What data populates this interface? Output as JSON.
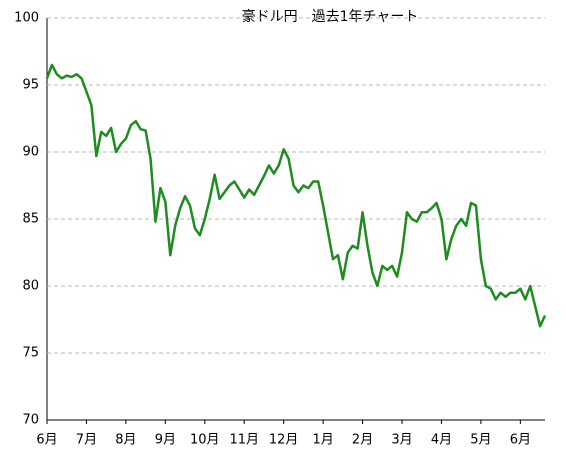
{
  "chart_data": {
    "type": "line",
    "title": "豪ドル円　過去1年チャート",
    "categories": [
      "6月",
      null,
      null,
      null,
      null,
      null,
      null,
      null,
      "7月",
      null,
      null,
      null,
      null,
      null,
      null,
      null,
      "8月",
      null,
      null,
      null,
      null,
      null,
      null,
      null,
      "9月",
      null,
      null,
      null,
      null,
      null,
      null,
      null,
      "10月",
      null,
      null,
      null,
      null,
      null,
      null,
      null,
      "11月",
      null,
      null,
      null,
      null,
      null,
      null,
      null,
      "12月",
      null,
      null,
      null,
      null,
      null,
      null,
      null,
      "1月",
      null,
      null,
      null,
      null,
      null,
      null,
      null,
      "2月",
      null,
      null,
      null,
      null,
      null,
      null,
      null,
      "3月",
      null,
      null,
      null,
      null,
      null,
      null,
      null,
      "4月",
      null,
      null,
      null,
      null,
      null,
      null,
      null,
      "5月",
      null,
      null,
      null,
      null,
      null,
      null,
      null,
      "6月",
      null,
      null,
      null,
      null,
      null
    ],
    "series": [
      {
        "name": "豪ドル円",
        "color": "#1e8c1e",
        "values": [
          95.5,
          96.5,
          95.8,
          95.5,
          95.7,
          95.6,
          95.8,
          95.5,
          94.5,
          93.5,
          89.7,
          91.5,
          91.2,
          91.8,
          90.0,
          90.6,
          91.0,
          92.0,
          92.3,
          91.7,
          91.6,
          89.5,
          84.8,
          87.3,
          86.3,
          82.3,
          84.5,
          85.8,
          86.7,
          86.0,
          84.3,
          83.8,
          85.0,
          86.5,
          88.3,
          86.5,
          87.0,
          87.5,
          87.8,
          87.2,
          86.6,
          87.2,
          86.8,
          87.5,
          88.2,
          89.0,
          88.4,
          89.0,
          90.2,
          89.5,
          87.5,
          87.0,
          87.5,
          87.3,
          87.8,
          87.8,
          86.0,
          84.0,
          82.0,
          82.3,
          80.5,
          82.5,
          83.0,
          82.8,
          85.5,
          83.0,
          81.0,
          80.0,
          81.5,
          81.2,
          81.5,
          80.7,
          82.5,
          85.5,
          85.0,
          84.8,
          85.5,
          85.5,
          85.8,
          86.2,
          85.0,
          82.0,
          83.5,
          84.5,
          85.0,
          84.5,
          86.2,
          86.0,
          82.0,
          80.0,
          79.8,
          79.0,
          79.5,
          79.2,
          79.5,
          79.5,
          79.8,
          79.0,
          80.0,
          78.5,
          77.0,
          77.8
        ]
      }
    ],
    "ylim": [
      70,
      100
    ],
    "yticks": [
      70,
      75,
      80,
      85,
      90,
      95,
      100
    ],
    "grid": true
  }
}
